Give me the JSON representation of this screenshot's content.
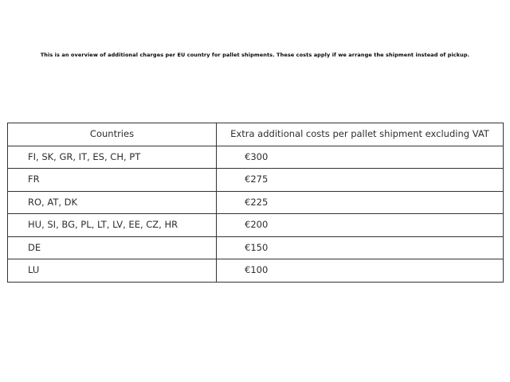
{
  "page": {
    "background": "#ffffff",
    "text_color": "#2e2e2e",
    "border_color": "#333333",
    "intro_text": "This is an overview of additional charges per EU country for pallet shipments. These costs apply if we arrange the shipment instead of pickup."
  },
  "table": {
    "columns": [
      {
        "label": "Countries"
      },
      {
        "label": "Extra additional costs per pallet shipment excluding VAT"
      }
    ],
    "rows": [
      {
        "countries": "FI, SK, GR, IT, ES, CH, PT",
        "cost": "€300"
      },
      {
        "countries": "FR",
        "cost": "€275"
      },
      {
        "countries": "RO, AT, DK",
        "cost": "€225"
      },
      {
        "countries": "HU, SI, BG, PL, LT, LV, EE, CZ, HR",
        "cost": "€200"
      },
      {
        "countries": "DE",
        "cost": "€150"
      },
      {
        "countries": "LU",
        "cost": "€100"
      }
    ]
  }
}
